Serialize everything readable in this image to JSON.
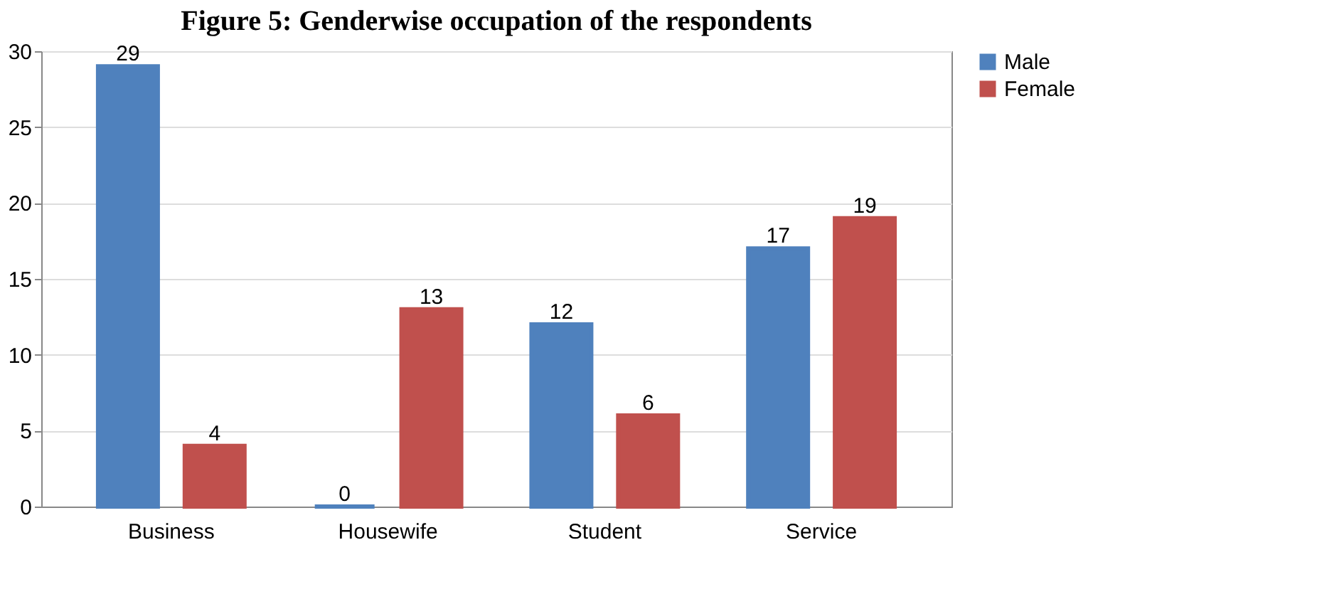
{
  "chart_data": {
    "type": "bar",
    "title": "Figure 5: Genderwise occupation of the respondents",
    "categories": [
      "Business",
      "Housewife",
      "Student",
      "Service"
    ],
    "series": [
      {
        "name": "Male",
        "color": "#4f81bd",
        "values": [
          29,
          0,
          12,
          17
        ]
      },
      {
        "name": "Female",
        "color": "#c0504d",
        "values": [
          4,
          13,
          6,
          19
        ]
      }
    ],
    "ylim": [
      0,
      30
    ],
    "yticks": [
      0,
      5,
      10,
      15,
      20,
      25,
      30
    ],
    "grid": "y",
    "legend": "right",
    "data_labels": true
  }
}
